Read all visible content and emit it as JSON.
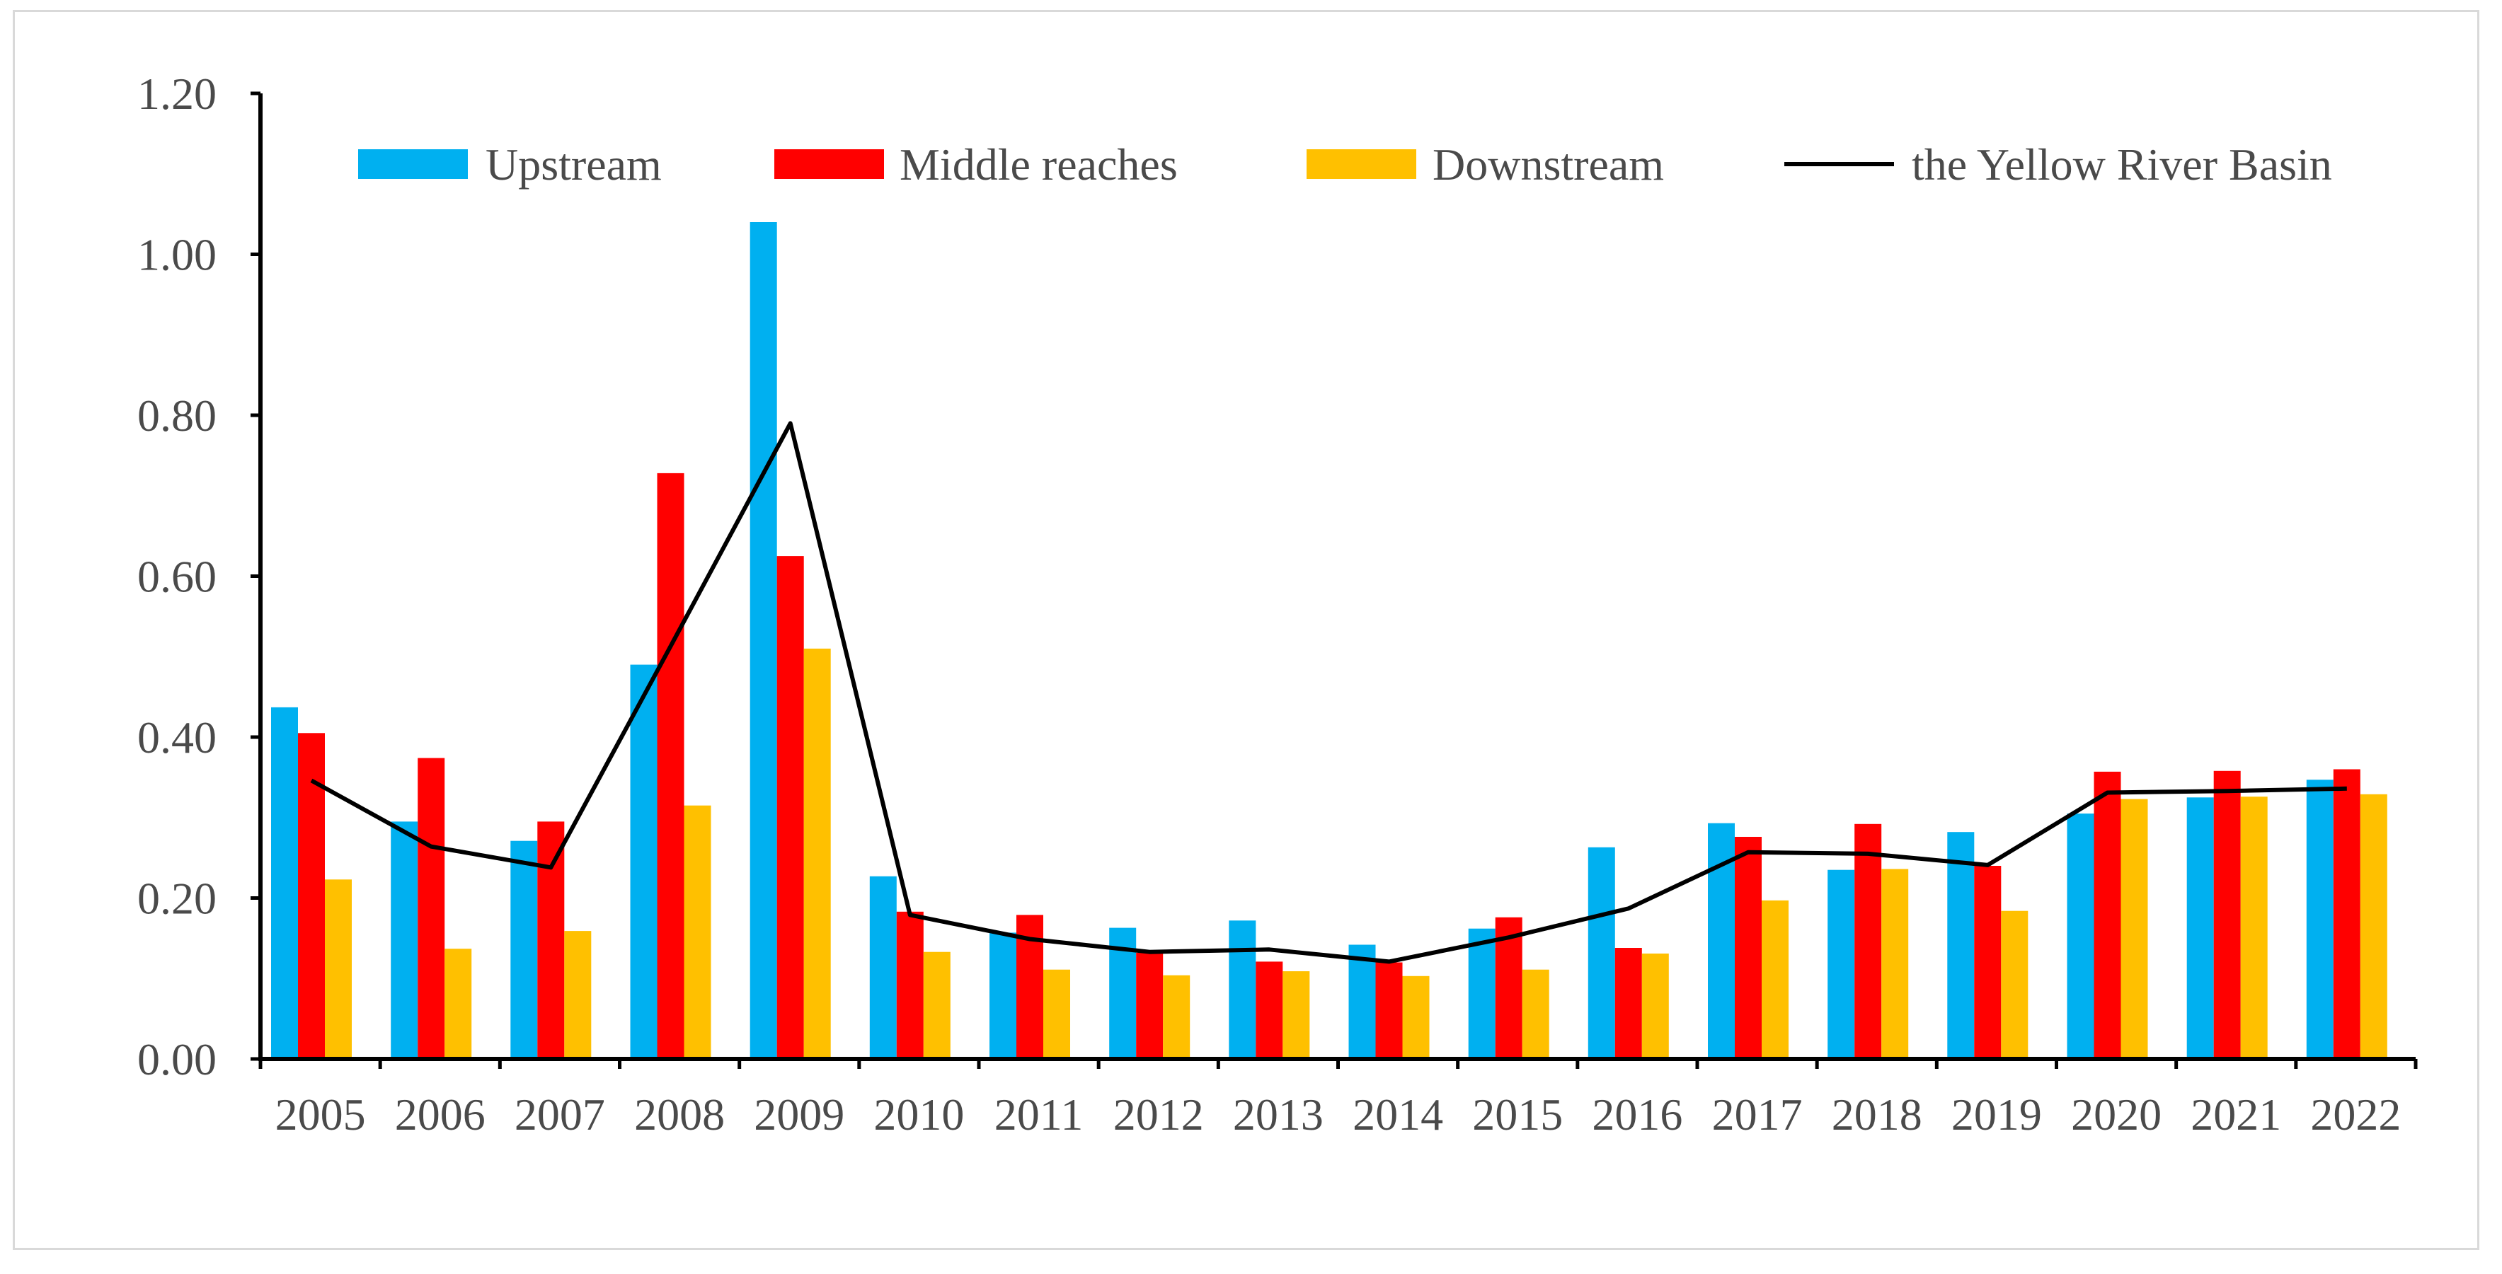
{
  "chart_data": {
    "type": "bar",
    "title": "",
    "xlabel": "",
    "ylabel": "",
    "ylim": [
      0,
      1.2
    ],
    "yticks": [
      "0.00",
      "0.20",
      "0.40",
      "0.60",
      "0.80",
      "1.00",
      "1.20"
    ],
    "grid": false,
    "legend_position": "top",
    "categories": [
      "2005",
      "2006",
      "2007",
      "2008",
      "2009",
      "2010",
      "2011",
      "2012",
      "2013",
      "2014",
      "2015",
      "2016",
      "2017",
      "2018",
      "2019",
      "2020",
      "2021",
      "2022"
    ],
    "series": [
      {
        "name": "Upstream",
        "kind": "bar",
        "color": "#00b0f0",
        "values": [
          0.437,
          0.295,
          0.271,
          0.49,
          1.04,
          0.227,
          0.157,
          0.163,
          0.172,
          0.142,
          0.162,
          0.263,
          0.293,
          0.235,
          0.282,
          0.305,
          0.325,
          0.347
        ]
      },
      {
        "name": "Middle reaches",
        "kind": "bar",
        "color": "#ff0000",
        "values": [
          0.405,
          0.374,
          0.295,
          0.728,
          0.625,
          0.183,
          0.179,
          0.132,
          0.121,
          0.12,
          0.176,
          0.138,
          0.276,
          0.292,
          0.24,
          0.357,
          0.358,
          0.36
        ]
      },
      {
        "name": "Downstream",
        "kind": "bar",
        "color": "#ffc000",
        "values": [
          0.223,
          0.137,
          0.159,
          0.315,
          0.51,
          0.133,
          0.111,
          0.104,
          0.109,
          0.103,
          0.111,
          0.131,
          0.197,
          0.236,
          0.184,
          0.323,
          0.326,
          0.329
        ]
      },
      {
        "name": "the Yellow River Basin",
        "kind": "line",
        "color": "#000000",
        "values": [
          0.346,
          0.264,
          0.238,
          0.513,
          0.79,
          0.179,
          0.149,
          0.133,
          0.136,
          0.121,
          0.151,
          0.187,
          0.257,
          0.255,
          0.241,
          0.331,
          0.333,
          0.336
        ]
      }
    ]
  }
}
